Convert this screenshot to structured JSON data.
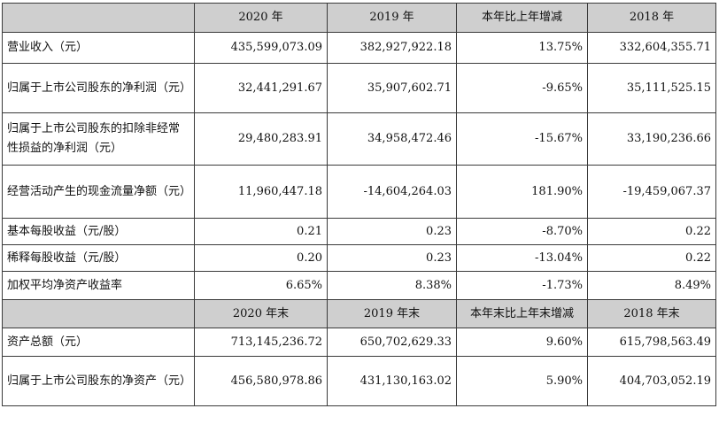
{
  "header1": [
    "",
    "2020 年",
    "2019 年",
    "本年比上年增减",
    "2018 年"
  ],
  "rows1": [
    {
      "label": "营业收入（元）",
      "values": [
        "435,599,073.09",
        "382,927,922.18",
        "13.75%",
        "332,604,355.71"
      ]
    },
    {
      "label": "归属于上市公司股东的净利润（元）",
      "values": [
        "32,441,291.67",
        "35,907,602.71",
        "-9.65%",
        "35,111,525.15"
      ]
    },
    {
      "label": "归属于上市公司股东的扣除非经常性损益的净利润（元）",
      "values": [
        "29,480,283.91",
        "34,958,472.46",
        "-15.67%",
        "33,190,236.66"
      ]
    },
    {
      "label": "经营活动产生的现金流量净额（元）",
      "values": [
        "11,960,447.18",
        "-14,604,264.03",
        "181.90%",
        "-19,459,067.37"
      ]
    },
    {
      "label": "基本每股收益（元/股）",
      "values": [
        "0.21",
        "0.23",
        "-8.70%",
        "0.22"
      ]
    },
    {
      "label": "稀释每股收益（元/股）",
      "values": [
        "0.20",
        "0.23",
        "-13.04%",
        "0.22"
      ]
    },
    {
      "label": "加权平均净资产收益率",
      "values": [
        "6.65%",
        "8.38%",
        "-1.73%",
        "8.49%"
      ]
    }
  ],
  "header2": [
    "",
    "2020 年末",
    "2019 年末",
    "本年末比上年末增减",
    "2018 年末"
  ],
  "rows2": [
    {
      "label": "资产总额（元）",
      "values": [
        "713,145,236.72",
        "650,702,629.33",
        "9.60%",
        "615,798,563.49"
      ]
    },
    {
      "label": "归属于上市公司股东的净资产（元）",
      "values": [
        "456,580,978.86",
        "431,130,163.02",
        "5.90%",
        "404,703,052.19"
      ]
    }
  ],
  "colors": {
    "header_bg": "#cfcfcf",
    "border": "#3a3a3a",
    "text": "#111111"
  }
}
